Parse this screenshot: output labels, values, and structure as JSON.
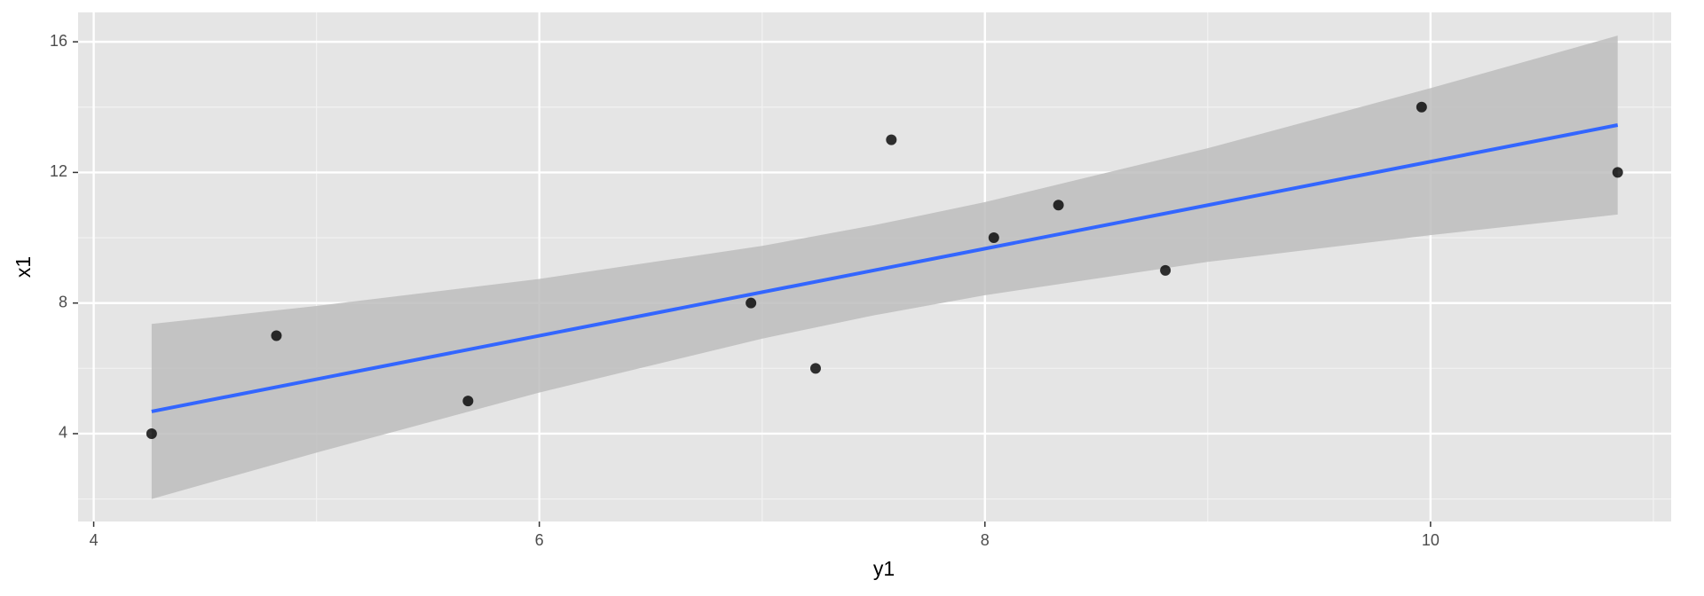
{
  "chart_data": {
    "type": "scatter",
    "x_label": "y1",
    "y_label": "x1",
    "xlim": [
      3.93,
      11.08
    ],
    "ylim": [
      1.31,
      16.9
    ],
    "xticks": [
      4,
      6,
      8,
      10
    ],
    "yticks": [
      4,
      8,
      12,
      16
    ],
    "grid": true,
    "series": [
      {
        "name": "points",
        "color": "#000000",
        "x": [
          8.04,
          6.95,
          7.58,
          8.81,
          8.33,
          9.96,
          7.24,
          4.26,
          10.84,
          4.82,
          5.68
        ],
        "values": [
          10,
          8,
          13,
          9,
          11,
          14,
          6,
          4,
          12,
          7,
          5
        ]
      },
      {
        "name": "fit",
        "color": "#3366FF",
        "x": [
          4.26,
          10.84
        ],
        "values": [
          4.68,
          13.45
        ]
      },
      {
        "name": "confidence band",
        "color": "#bdbdbd",
        "x": [
          4.26,
          5,
          6,
          7,
          7.5,
          8,
          9,
          10,
          10.84
        ],
        "lower": [
          2.0,
          3.42,
          5.26,
          6.91,
          7.62,
          8.24,
          9.26,
          10.08,
          10.71
        ],
        "upper": [
          7.36,
          7.91,
          8.74,
          9.75,
          10.38,
          11.09,
          12.74,
          14.58,
          16.19
        ]
      }
    ]
  }
}
